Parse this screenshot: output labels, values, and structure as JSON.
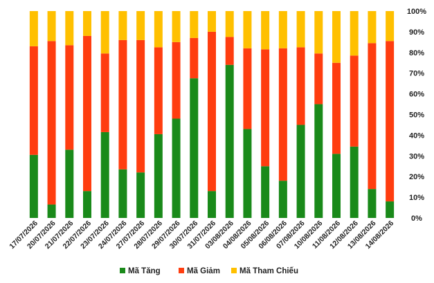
{
  "chart_data": {
    "type": "bar",
    "stacked": true,
    "percent": true,
    "categories": [
      "17/07/2026",
      "20/07/2026",
      "21/07/2026",
      "22/07/2026",
      "23/07/2026",
      "24/07/2026",
      "27/07/2026",
      "28/07/2026",
      "29/07/2026",
      "30/07/2026",
      "31/07/2026",
      "03/08/2026",
      "04/08/2026",
      "05/08/2026",
      "06/08/2026",
      "07/08/2026",
      "10/08/2026",
      "11/08/2026",
      "12/08/2026",
      "13/08/2026",
      "14/08/2026"
    ],
    "series": [
      {
        "name": "Mã Tăng",
        "color": "#1a8a1a",
        "values": [
          30.5,
          6.5,
          33,
          13,
          41.5,
          23.5,
          22,
          40.5,
          48,
          67.5,
          13,
          74,
          43,
          25,
          18,
          45,
          55,
          31,
          34.5,
          14,
          8
        ]
      },
      {
        "name": "Mã Giảm",
        "color": "#ff3d0f",
        "values": [
          52.5,
          79,
          50.5,
          75,
          38,
          62.5,
          64,
          42,
          37,
          19.5,
          77,
          13.5,
          39,
          56.5,
          64,
          37.5,
          24.5,
          44,
          44,
          70.5,
          77.5
        ]
      },
      {
        "name": "Mã Tham Chiếu",
        "color": "#ffc000",
        "values": [
          17,
          14.5,
          16.5,
          12,
          20.5,
          14,
          14,
          17.5,
          15,
          13,
          10,
          12.5,
          18,
          18.5,
          18,
          17.5,
          20.5,
          25,
          21.5,
          15.5,
          14.5
        ]
      }
    ],
    "yaxis": {
      "position": "right",
      "ticks": [
        "0%",
        "10%",
        "20%",
        "30%",
        "40%",
        "50%",
        "60%",
        "70%",
        "80%",
        "90%",
        "100%"
      ],
      "range": [
        0,
        100
      ]
    },
    "grid": false,
    "legend": "bottom"
  }
}
